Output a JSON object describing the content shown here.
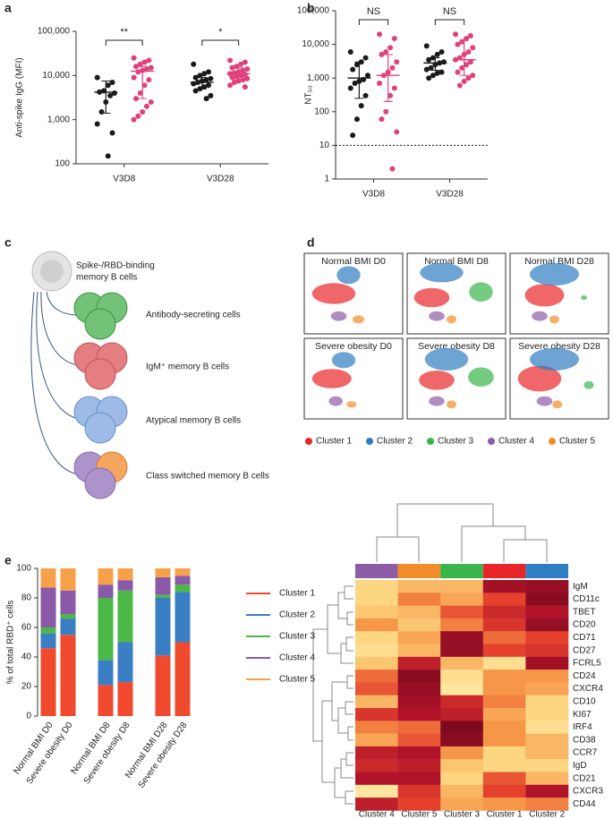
{
  "chart_data": [
    {
      "type": "dotplot",
      "label": "a",
      "y_label": "Anti-spike IgG (MFI)",
      "log_y": true,
      "ylim": [
        100,
        100000
      ],
      "yticks": [
        100,
        {
          "value": 1000,
          "label": "1,000"
        },
        {
          "value": 10000,
          "label": "10,000"
        },
        {
          "value": 100000,
          "label": "100,000"
        }
      ],
      "categories": [
        "V3D8",
        "V3D28"
      ],
      "series": [
        {
          "color": "#1a1a1a",
          "values": [
            [
              9000,
              7000,
              6000,
              4500,
              4200,
              4000,
              3500,
              2500,
              1500,
              800,
              500,
              150
            ],
            [
              18000,
              12000,
              11000,
              10000,
              9000,
              8500,
              8000,
              7500,
              7000,
              6500,
              6000,
              5500,
              5000,
              4500,
              3500,
              3000
            ]
          ],
          "median": [
            4200,
            7000
          ],
          "q1": [
            1400,
            5000
          ],
          "q3": [
            7500,
            9000
          ]
        },
        {
          "color": "#e0407c",
          "values": [
            [
              25000,
              22000,
              20000,
              18000,
              16000,
              15000,
              14000,
              13000,
              12000,
              9000,
              8000,
              6000,
              4000,
              3000,
              2500,
              2000,
              1500,
              1200,
              1000
            ],
            [
              22000,
              20000,
              18000,
              16000,
              15000,
              14000,
              13000,
              12000,
              11500,
              11000,
              10500,
              10000,
              9500,
              9000,
              8500,
              8000,
              7500,
              7000,
              6000,
              5500
            ]
          ],
          "median": [
            12500,
            11000
          ],
          "q1": [
            3000,
            8000
          ],
          "q3": [
            16000,
            15000
          ]
        }
      ],
      "annotations": [
        "**",
        "*"
      ]
    },
    {
      "type": "dotplot",
      "label": "b",
      "y_label": "NT₅₀",
      "log_y": true,
      "ylim": [
        1,
        100000
      ],
      "yticks": [
        1,
        10,
        100,
        {
          "value": 1000,
          "label": "1,000"
        },
        {
          "value": 10000,
          "label": "10,000"
        },
        {
          "value": 100000,
          "label": "100,000"
        }
      ],
      "categories": [
        "V3D8",
        "V3D28"
      ],
      "series": [
        {
          "color": "#1a1a1a",
          "values": [
            [
              6000,
              4000,
              3000,
              2500,
              1800,
              1200,
              900,
              800,
              700,
              500,
              300,
              150,
              60,
              20
            ],
            [
              9000,
              6000,
              5000,
              4000,
              3500,
              3000,
              2800,
              2500,
              2000,
              1800,
              1500,
              1400,
              1200,
              1000
            ]
          ],
          "median": [
            1000,
            2800
          ],
          "q1": [
            250,
            1700
          ],
          "q3": [
            3000,
            4000
          ]
        },
        {
          "color": "#e0407c",
          "values": [
            [
              20000,
              15000,
              8000,
              6000,
              5000,
              3000,
              2000,
              1500,
              1200,
              700,
              500,
              300,
              100,
              60,
              25,
              2
            ],
            [
              20000,
              18000,
              15000,
              12000,
              10000,
              8000,
              6000,
              5000,
              4000,
              3500,
              3000,
              2500,
              2000,
              1500,
              1200,
              1000,
              800,
              600
            ]
          ],
          "median": [
            1200,
            3500
          ],
          "q1": [
            200,
            1200
          ],
          "q3": [
            5000,
            13000
          ]
        }
      ],
      "reference_line": 10,
      "annotations": [
        "NS",
        "NS"
      ]
    },
    {
      "type": "tsne",
      "label": "d",
      "series": [
        {
          "name": "Cluster 1",
          "color": "#e8262a"
        },
        {
          "name": "Cluster 2",
          "color": "#2f7ec1"
        },
        {
          "name": "Cluster 3",
          "color": "#3ab54a"
        },
        {
          "name": "Cluster 4",
          "color": "#8e5ba6"
        },
        {
          "name": "Cluster 5",
          "color": "#f28c28"
        }
      ],
      "panels": [
        {
          "title": "Normal BMI D0",
          "clusters": [
            [
              [
                30,
                50,
                22,
                13
              ]
            ],
            [
              [
                45,
                27,
                12,
                11
              ]
            ],
            [],
            [
              [
                35,
                78,
                8,
                6
              ]
            ],
            [
              [
                55,
                82,
                6,
                5
              ]
            ]
          ]
        },
        {
          "title": "Normal BMI D8",
          "clusters": [
            [
              [
                25,
                55,
                18,
                12
              ]
            ],
            [
              [
                35,
                24,
                22,
                12
              ]
            ],
            [
              [
                75,
                48,
                12,
                12
              ]
            ],
            [
              [
                30,
                78,
                8,
                6
              ]
            ],
            [
              [
                45,
                82,
                5,
                5
              ]
            ]
          ]
        },
        {
          "title": "Normal BMI D28",
          "clusters": [
            [
              [
                35,
                52,
                20,
                14
              ]
            ],
            [
              [
                45,
                26,
                25,
                14
              ]
            ],
            [
              [
                75,
                55,
                3,
                3
              ]
            ],
            [
              [
                30,
                78,
                8,
                6
              ]
            ],
            [
              [
                45,
                82,
                5,
                5
              ]
            ]
          ]
        },
        {
          "title": "Severe obesity D0",
          "clusters": [
            [
              [
                28,
                50,
                20,
                12
              ]
            ],
            [
              [
                40,
                27,
                12,
                10
              ]
            ],
            [],
            [
              [
                32,
                78,
                7,
                6
              ]
            ],
            [
              [
                48,
                82,
                5,
                4
              ]
            ]
          ]
        },
        {
          "title": "Severe obesity D8",
          "clusters": [
            [
              [
                30,
                52,
                18,
                12
              ]
            ],
            [
              [
                40,
                26,
                22,
                14
              ]
            ],
            [
              [
                75,
                48,
                13,
                12
              ]
            ],
            [
              [
                30,
                78,
                8,
                6
              ]
            ],
            [
              [
                45,
                82,
                5,
                5
              ]
            ]
          ]
        },
        {
          "title": "Severe obesity D28",
          "clusters": [
            [
              [
                30,
                50,
                22,
                16
              ]
            ],
            [
              [
                45,
                26,
                25,
                14
              ]
            ],
            [
              [
                80,
                58,
                5,
                5
              ]
            ],
            [
              [
                35,
                78,
                8,
                6
              ]
            ],
            [
              [
                48,
                82,
                5,
                5
              ]
            ]
          ]
        }
      ]
    },
    {
      "type": "bar",
      "stacked": true,
      "label": "e",
      "y_label": "% of total RBD⁺ cells",
      "categories": [
        "Normal BMI D0",
        "Severe obesity D0",
        "Normal BMI D8",
        "Severe obesity D8",
        "Normal BMI D28",
        "Severe obesity D28"
      ],
      "ylim": [
        0,
        100
      ],
      "yticks": [
        0,
        20,
        40,
        60,
        80,
        100
      ],
      "series": [
        {
          "name": "Cluster 1",
          "color": "#f04a2e",
          "values": [
            46,
            55,
            21,
            23,
            41,
            50
          ]
        },
        {
          "name": "Cluster 2",
          "color": "#3a7fc3",
          "values": [
            10,
            11,
            17,
            27,
            39,
            34
          ]
        },
        {
          "name": "Cluster 3",
          "color": "#4cb847",
          "values": [
            4,
            3,
            42,
            35,
            2,
            5
          ]
        },
        {
          "name": "Cluster 4",
          "color": "#8a5aa8",
          "values": [
            27,
            16,
            9,
            7,
            12,
            6
          ]
        },
        {
          "name": "Cluster 5",
          "color": "#f7a04a",
          "values": [
            13,
            15,
            11,
            8,
            6,
            5
          ]
        }
      ]
    },
    {
      "type": "heatmap",
      "columns": [
        "Cluster 4",
        "Cluster 5",
        "Cluster 3",
        "Cluster 1",
        "Cluster 2"
      ],
      "column_colors": [
        "#8e5ba6",
        "#f28c28",
        "#3ab54a",
        "#e8262a",
        "#2f7ec1"
      ],
      "rows": [
        "IgM",
        "CD11c",
        "TBET",
        "CD20",
        "CD71",
        "CD27",
        "FCRL5",
        "CD24",
        "CXCR4",
        "CD10",
        "KI67",
        "IRF4",
        "CD38",
        "CCR7",
        "IgD",
        "CD21",
        "CXCR3",
        "CD44"
      ],
      "values": [
        [
          0.2,
          0.3,
          0.3,
          0.85,
          0.9
        ],
        [
          0.2,
          0.45,
          0.35,
          0.6,
          0.95
        ],
        [
          0.25,
          0.3,
          0.55,
          0.7,
          0.8
        ],
        [
          0.4,
          0.25,
          0.45,
          0.65,
          0.9
        ],
        [
          0.2,
          0.35,
          0.9,
          0.5,
          0.6
        ],
        [
          0.15,
          0.3,
          0.9,
          0.6,
          0.65
        ],
        [
          0.25,
          0.75,
          0.3,
          0.15,
          0.85
        ],
        [
          0.5,
          0.95,
          0.15,
          0.4,
          0.4
        ],
        [
          0.55,
          0.9,
          0.1,
          0.4,
          0.35
        ],
        [
          0.3,
          0.85,
          0.7,
          0.45,
          0.2
        ],
        [
          0.65,
          0.8,
          0.75,
          0.35,
          0.2
        ],
        [
          0.45,
          0.5,
          1.0,
          0.4,
          0.15
        ],
        [
          0.35,
          0.55,
          0.95,
          0.4,
          0.3
        ],
        [
          0.75,
          0.8,
          0.4,
          0.2,
          0.3
        ],
        [
          0.7,
          0.75,
          0.25,
          0.2,
          0.2
        ],
        [
          0.8,
          0.8,
          0.2,
          0.55,
          0.3
        ],
        [
          0.1,
          0.65,
          0.3,
          0.6,
          0.8
        ],
        [
          0.75,
          0.6,
          0.35,
          0.4,
          0.45
        ]
      ]
    }
  ],
  "diagram": {
    "label": "c",
    "nodes": [
      {
        "lines": [
          "Spike-/RBD-binding",
          "memory B cells"
        ]
      },
      {
        "label": "Antibody-secreting cells"
      },
      {
        "label": "IgM⁺ memory B cells"
      },
      {
        "label": "Atypical memory B cells"
      },
      {
        "label": "Class switched memory B cells"
      }
    ]
  }
}
